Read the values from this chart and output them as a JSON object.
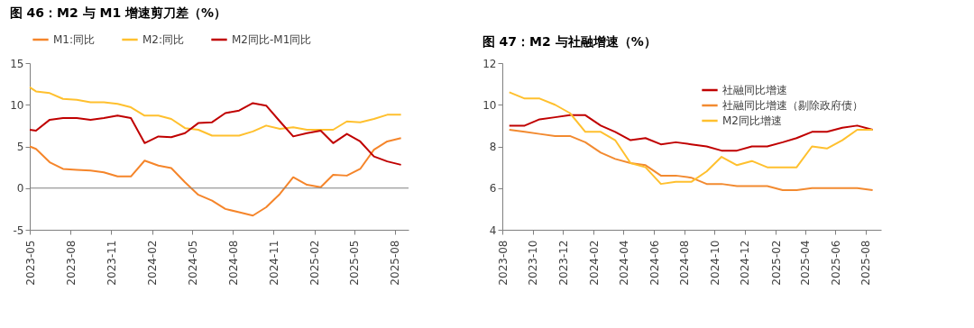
{
  "chart_data": [
    {
      "type": "line",
      "title": "图 46：M2 与 M1 增速剪刀差（%）",
      "legend": "top",
      "grid": false,
      "line_style": "solid",
      "marker": "none",
      "x": [
        "2023-05-01",
        "2023-05-15",
        "2023-06-15",
        "2023-07-15",
        "2023-08-15",
        "2023-09-15",
        "2023-10-15",
        "2023-11-15",
        "2023-12-15",
        "2024-01-15",
        "2024-02-15",
        "2024-03-15",
        "2024-04-15",
        "2024-05-15",
        "2024-06-15",
        "2024-07-15",
        "2024-08-15",
        "2024-09-15",
        "2024-10-15",
        "2024-11-15",
        "2024-12-15",
        "2025-01-15",
        "2025-02-15",
        "2025-03-15",
        "2025-04-15",
        "2025-05-15",
        "2025-06-15",
        "2025-07-15",
        "2025-08-15"
      ],
      "xlim": [
        "2023-05-01",
        "2025-09-01"
      ],
      "xticks": [
        {
          "value": "2023-05-01",
          "label": "2023-05"
        },
        {
          "value": "2023-08-01",
          "label": "2023-08"
        },
        {
          "value": "2023-11-01",
          "label": "2023-11"
        },
        {
          "value": "2024-02-01",
          "label": "2024-02"
        },
        {
          "value": "2024-05-01",
          "label": "2024-05"
        },
        {
          "value": "2024-08-01",
          "label": "2024-08"
        },
        {
          "value": "2024-11-01",
          "label": "2024-11"
        },
        {
          "value": "2025-02-01",
          "label": "2025-02"
        },
        {
          "value": "2025-05-01",
          "label": "2025-05"
        },
        {
          "value": "2025-08-01",
          "label": "2025-08"
        }
      ],
      "ylim": [
        -5,
        15
      ],
      "yticks": [
        -5,
        0,
        5,
        10,
        15
      ],
      "ref_lines": [
        {
          "axis": "y",
          "value": 0,
          "color": "#808080"
        }
      ],
      "series": [
        {
          "name": "M1:同比",
          "color": "#f5852a",
          "values": [
            5.0,
            4.7,
            3.1,
            2.3,
            2.2,
            2.1,
            1.9,
            1.4,
            1.4,
            3.3,
            2.7,
            2.4,
            0.7,
            -0.8,
            -1.5,
            -2.5,
            -2.9,
            -3.3,
            -2.3,
            -0.7,
            1.3,
            0.4,
            0.1,
            1.6,
            1.5,
            2.3,
            4.6,
            5.6,
            6.0
          ]
        },
        {
          "name": "M2:同比",
          "color": "#ffc02e",
          "values": [
            12.1,
            11.6,
            11.4,
            10.7,
            10.6,
            10.3,
            10.3,
            10.1,
            9.7,
            8.7,
            8.7,
            8.3,
            7.2,
            7.0,
            6.3,
            6.3,
            6.3,
            6.8,
            7.5,
            7.1,
            7.3,
            7.0,
            7.0,
            7.0,
            8.0,
            7.9,
            8.3,
            8.8,
            8.8
          ]
        },
        {
          "name": "M2同比-M1同比",
          "color": "#c00000",
          "values": [
            7.0,
            6.9,
            8.2,
            8.4,
            8.4,
            8.2,
            8.4,
            8.7,
            8.4,
            5.4,
            6.2,
            6.1,
            6.6,
            7.8,
            7.9,
            9.0,
            9.3,
            10.2,
            9.9,
            8.0,
            6.2,
            6.6,
            6.9,
            5.4,
            6.5,
            5.6,
            3.8,
            3.2,
            2.8
          ]
        }
      ]
    },
    {
      "type": "line",
      "title": "图 47：M2 与社融增速（%）",
      "legend": "top right",
      "grid": false,
      "line_style": "solid",
      "marker": "none",
      "x": [
        "2023-08-15",
        "2023-09-15",
        "2023-10-15",
        "2023-11-15",
        "2023-12-15",
        "2024-01-15",
        "2024-02-15",
        "2024-03-15",
        "2024-04-15",
        "2024-05-15",
        "2024-06-15",
        "2024-07-15",
        "2024-08-15",
        "2024-09-15",
        "2024-10-15",
        "2024-11-15",
        "2024-12-15",
        "2025-01-15",
        "2025-02-15",
        "2025-03-15",
        "2025-04-15",
        "2025-05-15",
        "2025-06-15",
        "2025-07-15",
        "2025-08-15"
      ],
      "xlim": [
        "2023-08-01",
        "2025-09-01"
      ],
      "xticks": [
        {
          "value": "2023-08-01",
          "label": "2023-08"
        },
        {
          "value": "2023-10-01",
          "label": "2023-10"
        },
        {
          "value": "2023-12-01",
          "label": "2023-12"
        },
        {
          "value": "2024-02-01",
          "label": "2024-02"
        },
        {
          "value": "2024-04-01",
          "label": "2024-04"
        },
        {
          "value": "2024-06-01",
          "label": "2024-06"
        },
        {
          "value": "2024-08-01",
          "label": "2024-08"
        },
        {
          "value": "2024-10-01",
          "label": "2024-10"
        },
        {
          "value": "2024-12-01",
          "label": "2024-12"
        },
        {
          "value": "2025-02-01",
          "label": "2025-02"
        },
        {
          "value": "2025-04-01",
          "label": "2025-04"
        },
        {
          "value": "2025-06-01",
          "label": "2025-06"
        },
        {
          "value": "2025-08-01",
          "label": "2025-08"
        }
      ],
      "ylim": [
        4,
        12
      ],
      "yticks": [
        4,
        6,
        8,
        10,
        12
      ],
      "series": [
        {
          "name": "社融同比增速",
          "color": "#c00000",
          "values": [
            9.0,
            9.0,
            9.3,
            9.4,
            9.5,
            9.5,
            9.0,
            8.7,
            8.3,
            8.4,
            8.1,
            8.2,
            8.1,
            8.0,
            7.8,
            7.8,
            8.0,
            8.0,
            8.2,
            8.4,
            8.7,
            8.7,
            8.9,
            9.0,
            8.8
          ]
        },
        {
          "name": "社融同比增速（剔除政府债）",
          "color": "#f28a30",
          "values": [
            8.8,
            8.7,
            8.6,
            8.5,
            8.5,
            8.2,
            7.7,
            7.4,
            7.2,
            7.1,
            6.6,
            6.6,
            6.5,
            6.2,
            6.2,
            6.1,
            6.1,
            6.1,
            5.9,
            5.9,
            6.0,
            6.0,
            6.0,
            6.0,
            5.9
          ]
        },
        {
          "name": "M2同比增速",
          "color": "#ffc02e",
          "values": [
            10.6,
            10.3,
            10.3,
            10.0,
            9.6,
            8.7,
            8.7,
            8.3,
            7.2,
            7.0,
            6.2,
            6.3,
            6.3,
            6.8,
            7.5,
            7.1,
            7.3,
            7.0,
            7.0,
            7.0,
            8.0,
            7.9,
            8.3,
            8.8,
            8.8
          ]
        }
      ]
    }
  ]
}
